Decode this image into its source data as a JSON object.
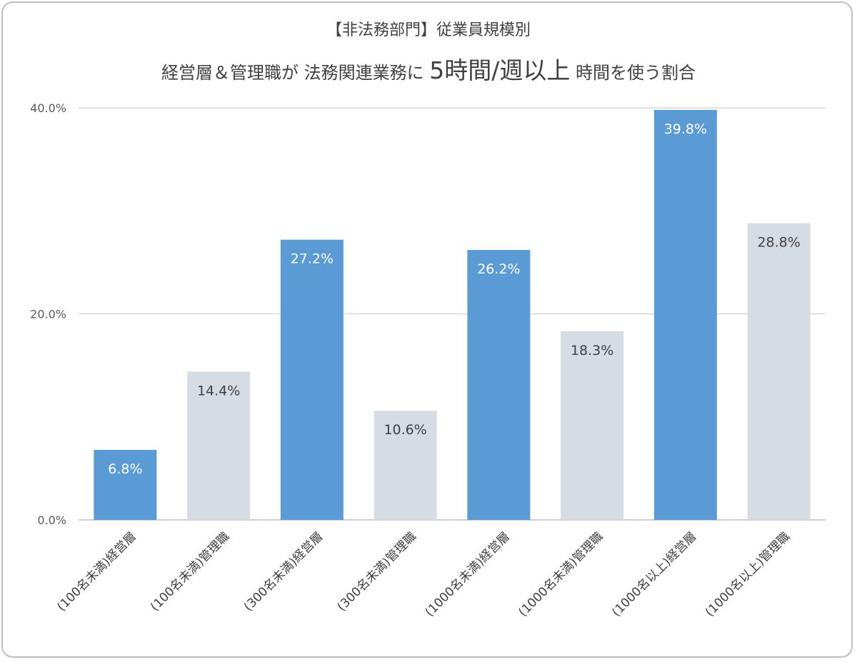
{
  "title": {
    "line1": "【非法務部門】従業員規模別",
    "line2_a": "経営層＆管理職が 法務関連業務に ",
    "line2_b": "5時間/週以上",
    "line2_c": " 時間を使う割合"
  },
  "chart_data": {
    "type": "bar",
    "categories": [
      "(100名未満)経営層",
      "(100名未満)管理職",
      "(300名未満)経営層",
      "(300名未満)管理職",
      "(1000名未満)経営層",
      "(1000名未満)管理職",
      "(1000名以上)経営層",
      "(1000名以上)管理職"
    ],
    "values": [
      6.8,
      14.4,
      27.2,
      10.6,
      26.2,
      18.3,
      39.8,
      28.8
    ],
    "value_labels": [
      "6.8%",
      "14.4%",
      "27.2%",
      "10.6%",
      "26.2%",
      "18.3%",
      "39.8%",
      "28.8%"
    ],
    "bar_colors": [
      "#5b9bd5",
      "#d6dce4",
      "#5b9bd5",
      "#d6dce4",
      "#5b9bd5",
      "#d6dce4",
      "#5b9bd5",
      "#d6dce4"
    ],
    "label_colors": [
      "#ffffff",
      "#404040",
      "#ffffff",
      "#404040",
      "#ffffff",
      "#404040",
      "#ffffff",
      "#404040"
    ],
    "ylim": [
      0,
      40
    ],
    "yticks": [
      0,
      20,
      40
    ],
    "ytick_labels": [
      "0.0%",
      "20.0%",
      "40.0%"
    ],
    "grid": true,
    "xlabel": "",
    "ylabel": ""
  }
}
